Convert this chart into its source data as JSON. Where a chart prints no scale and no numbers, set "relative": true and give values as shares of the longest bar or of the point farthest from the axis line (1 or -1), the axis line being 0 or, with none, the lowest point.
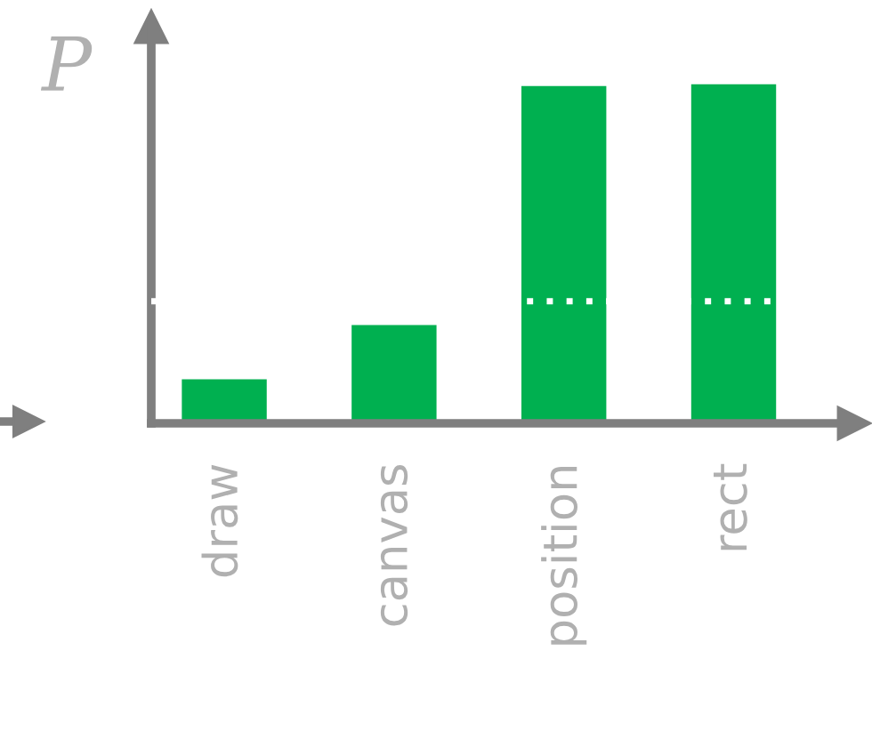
{
  "chart_data": {
    "type": "bar",
    "ylabel": "P",
    "categories": [
      "draw",
      "canvas",
      "position",
      "rect"
    ],
    "values": [
      0.13,
      0.29,
      0.995,
      1
    ],
    "color": "#00b050",
    "relative": true,
    "ref_lines": [
      {
        "axis": "y",
        "value": 0.36,
        "color": "#ffffff",
        "line_style": "dotted"
      }
    ],
    "grid": false,
    "legend": false
  }
}
